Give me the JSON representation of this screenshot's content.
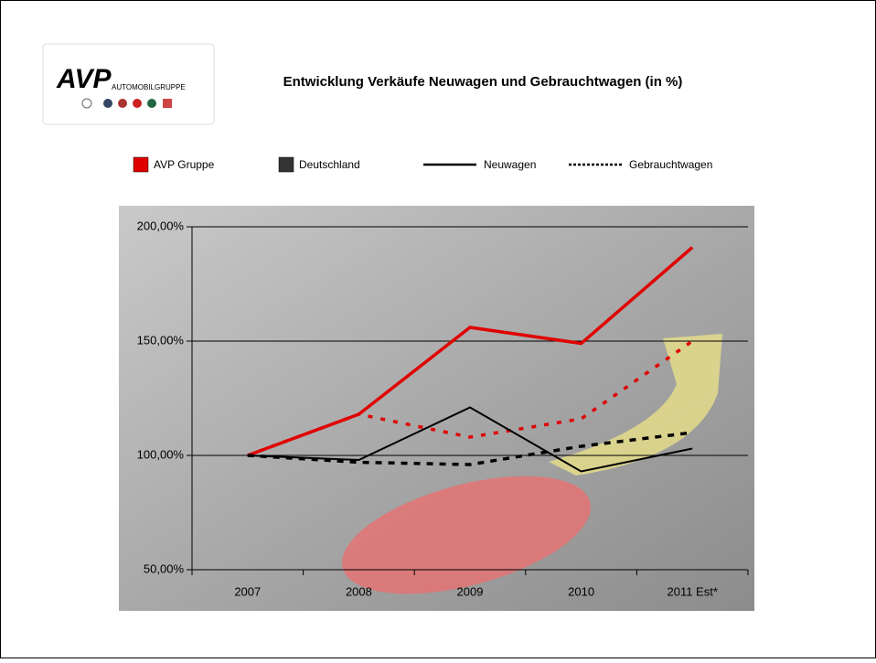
{
  "logo": {
    "title": "AVP",
    "subtitle": "AUTOMOBILGRUPPE"
  },
  "chart_data": {
    "type": "line",
    "title": "Entwicklung Verkäufe Neuwagen und Gebrauchtwagen (in %)",
    "legend": [
      {
        "label": "AVP Gruppe",
        "color": "#e00000",
        "kind": "box"
      },
      {
        "label": "Deutschland",
        "color": "#333333",
        "kind": "box"
      },
      {
        "label": "Neuwagen",
        "color": "#000000",
        "kind": "solid"
      },
      {
        "label": "Gebrauchtwagen",
        "color": "#000000",
        "kind": "dotted"
      }
    ],
    "categories": [
      "2007",
      "2008",
      "2009",
      "2010",
      "2011 Est*"
    ],
    "series": [
      {
        "color": "#e00000",
        "style": "solid",
        "values": [
          100,
          118,
          156,
          149,
          191
        ]
      },
      {
        "color": "#e00000",
        "style": "dotted",
        "values": [
          100,
          118,
          108,
          116,
          150
        ]
      },
      {
        "color": "#000000",
        "style": "solid",
        "values": [
          100,
          98,
          121,
          93,
          103
        ]
      },
      {
        "color": "#000000",
        "style": "dotted",
        "values": [
          100,
          97,
          96,
          104,
          110
        ]
      }
    ],
    "ylim": [
      50,
      200
    ],
    "yticks": [
      {
        "value": 50,
        "label": "50,00%"
      },
      {
        "value": 100,
        "label": "100,00%"
      },
      {
        "value": 150,
        "label": "150,00%"
      },
      {
        "value": 200,
        "label": "200,00%"
      }
    ],
    "grid": true
  }
}
